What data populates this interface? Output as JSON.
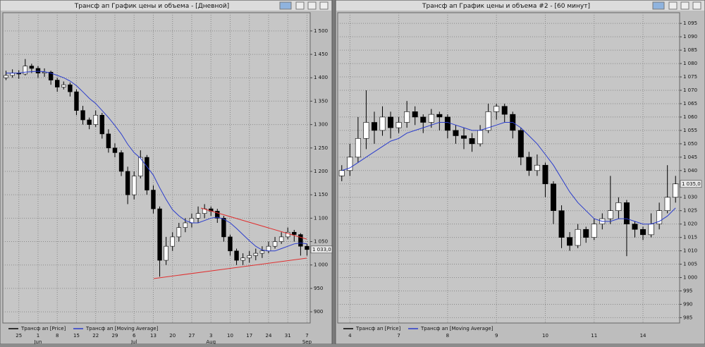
{
  "chart_data": [
    {
      "type": "candlestick",
      "title": "Трансф ап График цены и объема - [Дневной]",
      "categories": [
        null,
        null,
        "25",
        null,
        null,
        "1",
        null,
        null,
        "8",
        null,
        null,
        "15",
        null,
        null,
        "22",
        null,
        null,
        "29",
        null,
        null,
        "6",
        null,
        null,
        "13",
        null,
        null,
        "20",
        null,
        null,
        "27",
        null,
        null,
        "3",
        null,
        null,
        "10",
        null,
        null,
        "17",
        null,
        null,
        "24",
        null,
        null,
        "31",
        null,
        null,
        "7"
      ],
      "months": [
        null,
        null,
        null,
        null,
        null,
        "Jun",
        null,
        null,
        null,
        null,
        null,
        null,
        null,
        null,
        null,
        null,
        null,
        null,
        null,
        null,
        "Jul",
        null,
        null,
        null,
        null,
        null,
        null,
        null,
        null,
        null,
        null,
        null,
        "Aug",
        null,
        null,
        null,
        null,
        null,
        null,
        null,
        null,
        null,
        null,
        null,
        null,
        null,
        null,
        "Sep"
      ],
      "ylim": [
        876,
        1539
      ],
      "yticks": [
        {
          "value": 1500,
          "label": "1 500"
        },
        {
          "value": 1450,
          "label": "1 450"
        },
        {
          "value": 1400,
          "label": "1 400"
        },
        {
          "value": 1350,
          "label": "1 350"
        },
        {
          "value": 1300,
          "label": "1 300"
        },
        {
          "value": 1250,
          "label": "1 250"
        },
        {
          "value": 1200,
          "label": "1 200"
        },
        {
          "value": 1150,
          "label": "1 150"
        },
        {
          "value": 1100,
          "label": "1 100"
        },
        {
          "value": 1050,
          "label": "1 050"
        },
        {
          "value": 1000,
          "label": "1 000"
        },
        950,
        900
      ],
      "grid": true,
      "up_color": "#ffffff",
      "down_color": "#000000",
      "last_price": {
        "value": 1033,
        "label": "1 033,0"
      },
      "series": [
        {
          "name": "Трансф ап [Price]",
          "color": "#000000",
          "ohlc": [
            [
              1400,
              1415,
              1395,
              1405
            ],
            [
              1405,
              1418,
              1400,
              1410
            ],
            [
              1410,
              1416,
              1398,
              1408
            ],
            [
              1408,
              1440,
              1405,
              1425
            ],
            [
              1425,
              1430,
              1410,
              1420
            ],
            [
              1420,
              1425,
              1400,
              1410
            ],
            [
              1410,
              1420,
              1402,
              1412
            ],
            [
              1412,
              1415,
              1385,
              1395
            ],
            [
              1395,
              1400,
              1370,
              1380
            ],
            [
              1380,
              1392,
              1375,
              1385
            ],
            [
              1385,
              1390,
              1360,
              1370
            ],
            [
              1370,
              1375,
              1320,
              1330
            ],
            [
              1330,
              1340,
              1300,
              1310
            ],
            [
              1310,
              1315,
              1290,
              1300
            ],
            [
              1300,
              1330,
              1295,
              1320
            ],
            [
              1320,
              1325,
              1270,
              1280
            ],
            [
              1280,
              1290,
              1240,
              1250
            ],
            [
              1250,
              1260,
              1230,
              1240
            ],
            [
              1240,
              1245,
              1190,
              1200
            ],
            [
              1200,
              1210,
              1130,
              1150
            ],
            [
              1150,
              1200,
              1140,
              1190
            ],
            [
              1190,
              1245,
              1185,
              1230
            ],
            [
              1230,
              1235,
              1150,
              1160
            ],
            [
              1160,
              1170,
              1110,
              1120
            ],
            [
              1120,
              1125,
              975,
              1010
            ],
            [
              1010,
              1060,
              1000,
              1040
            ],
            [
              1040,
              1070,
              1030,
              1060
            ],
            [
              1060,
              1090,
              1050,
              1080
            ],
            [
              1080,
              1100,
              1070,
              1090
            ],
            [
              1090,
              1110,
              1080,
              1100
            ],
            [
              1100,
              1125,
              1090,
              1110
            ],
            [
              1110,
              1130,
              1100,
              1120
            ],
            [
              1120,
              1125,
              1105,
              1115
            ],
            [
              1115,
              1120,
              1090,
              1100
            ],
            [
              1100,
              1105,
              1050,
              1060
            ],
            [
              1060,
              1065,
              1020,
              1030
            ],
            [
              1030,
              1035,
              1000,
              1010
            ],
            [
              1010,
              1025,
              1000,
              1015
            ],
            [
              1015,
              1030,
              1005,
              1020
            ],
            [
              1020,
              1035,
              1010,
              1025
            ],
            [
              1025,
              1040,
              1015,
              1030
            ],
            [
              1030,
              1050,
              1025,
              1040
            ],
            [
              1040,
              1060,
              1035,
              1050
            ],
            [
              1050,
              1070,
              1045,
              1060
            ],
            [
              1060,
              1080,
              1055,
              1070
            ],
            [
              1070,
              1075,
              1050,
              1065
            ],
            [
              1065,
              1068,
              1020,
              1040
            ],
            [
              1040,
              1045,
              1020,
              1033
            ]
          ]
        },
        {
          "name": "Трансф ап [Moving Average]",
          "color": "#2a3ccc",
          "values": [
            1410,
            1410,
            1410,
            1412,
            1413,
            1414,
            1413,
            1410,
            1405,
            1400,
            1393,
            1383,
            1370,
            1356,
            1345,
            1330,
            1315,
            1298,
            1280,
            1258,
            1240,
            1228,
            1210,
            1192,
            1165,
            1140,
            1118,
            1105,
            1095,
            1090,
            1090,
            1095,
            1100,
            1102,
            1098,
            1090,
            1078,
            1065,
            1052,
            1040,
            1032,
            1030,
            1030,
            1035,
            1040,
            1045,
            1047,
            1045
          ]
        }
      ]
    },
    {
      "type": "candlestick",
      "title": "Трансф ап График цены и объема #2 - [60 минут]",
      "categories": [
        null,
        "4",
        null,
        null,
        null,
        null,
        null,
        "7",
        null,
        null,
        null,
        null,
        null,
        "8",
        null,
        null,
        null,
        null,
        null,
        "9",
        null,
        null,
        null,
        null,
        null,
        "10",
        null,
        null,
        null,
        null,
        null,
        "11",
        null,
        null,
        null,
        null,
        null,
        "14",
        null,
        null,
        null,
        null
      ],
      "ylim": [
        983,
        1099
      ],
      "yticks": [
        {
          "value": 1095,
          "label": "1 095"
        },
        {
          "value": 1090,
          "label": "1 090"
        },
        {
          "value": 1085,
          "label": "1 085"
        },
        {
          "value": 1080,
          "label": "1 080"
        },
        {
          "value": 1075,
          "label": "1 075"
        },
        {
          "value": 1070,
          "label": "1 070"
        },
        {
          "value": 1065,
          "label": "1 065"
        },
        {
          "value": 1060,
          "label": "1 060"
        },
        {
          "value": 1055,
          "label": "1 055"
        },
        {
          "value": 1050,
          "label": "1 050"
        },
        {
          "value": 1045,
          "label": "1 045"
        },
        {
          "value": 1040,
          "label": "1 040"
        },
        {
          "value": 1035,
          "label": "1 035"
        },
        {
          "value": 1030,
          "label": "1 030"
        },
        {
          "value": 1025,
          "label": "1 025"
        },
        {
          "value": 1020,
          "label": "1 020"
        },
        {
          "value": 1015,
          "label": "1 015"
        },
        {
          "value": 1010,
          "label": "1 010"
        },
        {
          "value": 1005,
          "label": "1 005"
        },
        {
          "value": 1000,
          "label": "1 000"
        },
        995,
        990,
        985
      ],
      "grid": true,
      "up_color": "#ffffff",
      "down_color": "#000000",
      "last_price": {
        "value": 1035,
        "label": "1 035,0"
      },
      "series": [
        {
          "name": "Трансф ап [Price]",
          "color": "#000000",
          "ohlc": [
            [
              1038,
              1042,
              1036,
              1040
            ],
            [
              1040,
              1050,
              1038,
              1045
            ],
            [
              1045,
              1060,
              1043,
              1052
            ],
            [
              1052,
              1070,
              1048,
              1058
            ],
            [
              1058,
              1062,
              1050,
              1055
            ],
            [
              1055,
              1064,
              1053,
              1060
            ],
            [
              1060,
              1062,
              1052,
              1056
            ],
            [
              1056,
              1060,
              1054,
              1058
            ],
            [
              1058,
              1066,
              1056,
              1062
            ],
            [
              1062,
              1064,
              1057,
              1060
            ],
            [
              1060,
              1061,
              1054,
              1058
            ],
            [
              1058,
              1063,
              1056,
              1061
            ],
            [
              1061,
              1062,
              1055,
              1060
            ],
            [
              1060,
              1061,
              1052,
              1055
            ],
            [
              1055,
              1057,
              1050,
              1053
            ],
            [
              1053,
              1056,
              1048,
              1052
            ],
            [
              1052,
              1054,
              1047,
              1050
            ],
            [
              1050,
              1057,
              1049,
              1055
            ],
            [
              1055,
              1065,
              1054,
              1062
            ],
            [
              1062,
              1065,
              1059,
              1064
            ],
            [
              1064,
              1065,
              1058,
              1061
            ],
            [
              1061,
              1062,
              1052,
              1055
            ],
            [
              1055,
              1056,
              1042,
              1045
            ],
            [
              1045,
              1047,
              1038,
              1040
            ],
            [
              1040,
              1046,
              1038,
              1042
            ],
            [
              1042,
              1043,
              1030,
              1035
            ],
            [
              1035,
              1036,
              1020,
              1025
            ],
            [
              1025,
              1027,
              1011,
              1015
            ],
            [
              1015,
              1017,
              1010,
              1012
            ],
            [
              1012,
              1020,
              1011,
              1018
            ],
            [
              1018,
              1019,
              1013,
              1015
            ],
            [
              1015,
              1022,
              1014,
              1020
            ],
            [
              1020,
              1024,
              1018,
              1022
            ],
            [
              1022,
              1038,
              1020,
              1025
            ],
            [
              1025,
              1030,
              1022,
              1028
            ],
            [
              1028,
              1029,
              1008,
              1020
            ],
            [
              1020,
              1021,
              1015,
              1018
            ],
            [
              1018,
              1019,
              1014,
              1016
            ],
            [
              1016,
              1024,
              1015,
              1020
            ],
            [
              1020,
              1028,
              1018,
              1025
            ],
            [
              1025,
              1042,
              1024,
              1030
            ],
            [
              1030,
              1038,
              1028,
              1035
            ]
          ]
        },
        {
          "name": "Трансф ап [Moving Average]",
          "color": "#2a3ccc",
          "values": [
            1040,
            1041,
            1043,
            1045,
            1047,
            1049,
            1051,
            1052,
            1054,
            1055,
            1056,
            1057,
            1058,
            1058,
            1057,
            1056,
            1055,
            1055,
            1056,
            1057,
            1058,
            1058,
            1056,
            1053,
            1050,
            1046,
            1042,
            1037,
            1032,
            1028,
            1025,
            1022,
            1021,
            1021,
            1022,
            1022,
            1021,
            1020,
            1020,
            1021,
            1023,
            1026
          ]
        }
      ]
    }
  ]
}
